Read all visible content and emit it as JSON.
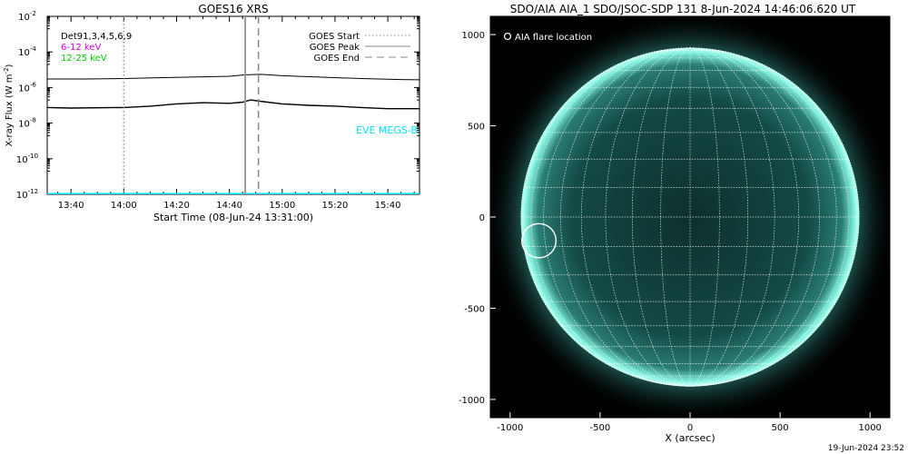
{
  "chart_data": [
    {
      "type": "line",
      "title": "GOES16 XRS",
      "xlabel": "Start Time (08-Jun-24 13:31:00)",
      "ylabel": "X-ray Flux (W m",
      "ylabel_unit_exp": "-2",
      "ylabel_close": ")",
      "y_scale": "log",
      "xlim": [
        "13:31",
        "15:52"
      ],
      "ylim": [
        1e-12,
        0.01
      ],
      "x_ticks": [
        "13:40",
        "14:00",
        "14:20",
        "14:40",
        "15:00",
        "15:20",
        "15:40"
      ],
      "y_ticks": [
        {
          "base": "10",
          "exp": "-2",
          "value": 0.01
        },
        {
          "base": "10",
          "exp": "-4",
          "value": 0.0001
        },
        {
          "base": "10",
          "exp": "-6",
          "value": 1e-06
        },
        {
          "base": "10",
          "exp": "-8",
          "value": 1e-08
        },
        {
          "base": "10",
          "exp": "-10",
          "value": 1e-10
        },
        {
          "base": "10",
          "exp": "-12",
          "value": 1e-12
        }
      ],
      "channel_labels": [
        {
          "text": "Det91,3,4,5,6,9",
          "color": "#000000"
        },
        {
          "text": "6-12 keV",
          "color": "#cc00cc"
        },
        {
          "text": "12-25 keV",
          "color": "#00cc00"
        }
      ],
      "legend": [
        {
          "text": "GOES Start",
          "style": "dotted"
        },
        {
          "text": "GOES Peak",
          "style": "solid"
        },
        {
          "text": "GOES End",
          "style": "dashed"
        }
      ],
      "legend_position": "top-right",
      "annotation": "EVE MEGS-B",
      "annotation_color": "#00e5ff",
      "markers": {
        "start": "14:00",
        "peak": "14:46",
        "end": "14:51"
      },
      "series": [
        {
          "x": [
            "13:31",
            "13:45",
            "14:00",
            "14:15",
            "14:30",
            "14:40",
            "14:46",
            "14:52",
            "15:00",
            "15:15",
            "15:30",
            "15:45",
            "15:52"
          ],
          "y": [
            3e-06,
            3e-06,
            3.2e-06,
            3.6e-06,
            4e-06,
            4.3e-06,
            5.2e-06,
            5.5e-06,
            4.6e-06,
            3.8e-06,
            3.2e-06,
            2.8e-06,
            2.7e-06
          ]
        },
        {
          "x": [
            "13:31",
            "13:40",
            "14:00",
            "14:10",
            "14:20",
            "14:30",
            "14:40",
            "14:45",
            "14:48",
            "14:53",
            "15:00",
            "15:10",
            "15:20",
            "15:30",
            "15:40",
            "15:52"
          ],
          "y": [
            7.5e-08,
            7e-08,
            7.5e-08,
            9e-08,
            1.2e-07,
            1.4e-07,
            1.3e-07,
            1.5e-07,
            2e-07,
            1.6e-07,
            1.2e-07,
            1e-07,
            9e-08,
            7.5e-08,
            6.5e-08,
            6.5e-08
          ]
        },
        {
          "x": [
            "13:31",
            "15:52"
          ],
          "y": [
            1.05e-12,
            1.05e-12
          ],
          "color": "#00e5ff"
        }
      ]
    },
    {
      "type": "image",
      "title": "SDO/AIA AIA_1 SDO/JSOC-SDP 131  8-Jun-2024 14:46:06.620 UT",
      "xlabel": "X (arcsec)",
      "xlim": [
        -1110,
        1110
      ],
      "ylim": [
        -1100,
        1100
      ],
      "x_ticks": [
        -1000,
        -500,
        0,
        500,
        1000
      ],
      "y_ticks": [
        1000,
        500,
        0,
        -500,
        -1000
      ],
      "legend": [
        {
          "text": "AIA flare location",
          "symbol": "circle"
        }
      ],
      "legend_position": "top-left",
      "disk_radius_arcsec": 940,
      "grid_step_deg": 10,
      "flare_location": {
        "x": -840,
        "y": -130,
        "radius": 95
      },
      "colors": {
        "disk": "#0e3a38",
        "limb": "#7ff0dc",
        "background": "#000000"
      }
    }
  ],
  "footer": {
    "timestamp": "19-Jun-2024 23:52"
  }
}
